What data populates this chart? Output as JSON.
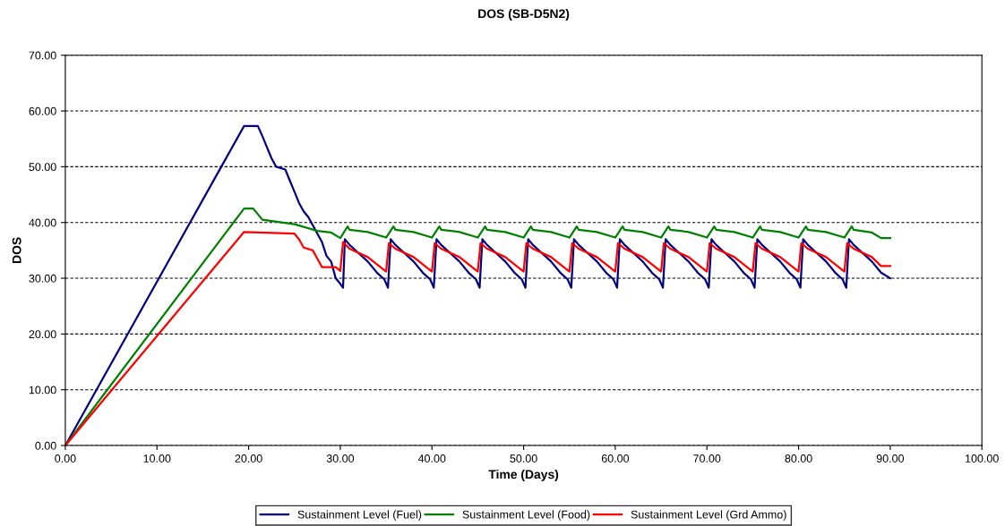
{
  "chart_data": {
    "type": "line",
    "title": "DOS (SB-D5N2)",
    "xlabel": "Time (Days)",
    "ylabel": "DOS",
    "xlim": [
      0,
      100
    ],
    "ylim": [
      0,
      70
    ],
    "xticks": [
      {
        "value": 0,
        "label": "0.00"
      },
      {
        "value": 10,
        "label": "10.00"
      },
      {
        "value": 20,
        "label": "20.00"
      },
      {
        "value": 30,
        "label": "30.00"
      },
      {
        "value": 40,
        "label": "40.00"
      },
      {
        "value": 50,
        "label": "50.00"
      },
      {
        "value": 60,
        "label": "60.00"
      },
      {
        "value": 70,
        "label": "70.00"
      },
      {
        "value": 80,
        "label": "80.00"
      },
      {
        "value": 90,
        "label": "90.00"
      },
      {
        "value": 100,
        "label": "100.00"
      }
    ],
    "yticks": [
      {
        "value": 0,
        "label": "0.00"
      },
      {
        "value": 10,
        "label": "10.00"
      },
      {
        "value": 20,
        "label": "20.00"
      },
      {
        "value": 30,
        "label": "30.00"
      },
      {
        "value": 40,
        "label": "40.00"
      },
      {
        "value": 50,
        "label": "50.00"
      },
      {
        "value": 60,
        "label": "60.00"
      },
      {
        "value": 70,
        "label": "70.00"
      }
    ],
    "grid": "y",
    "legend": "bottom",
    "marker": "none",
    "line_style": "solid",
    "series": [
      {
        "name": "Sustainment Level (Fuel)",
        "color": "#000080",
        "x": [
          0,
          19.5,
          21,
          21.5,
          22,
          22.5,
          23,
          24,
          24.5,
          25,
          25.5,
          26,
          26.5,
          27,
          27.5,
          28,
          28.5,
          29,
          29.5,
          30,
          30.3,
          30.5,
          31,
          32,
          33,
          34,
          34.8,
          35.2,
          35.5,
          36,
          37,
          38,
          39,
          39.8,
          40.2,
          40.5,
          41,
          42,
          43,
          44,
          44.8,
          45.2,
          45.5,
          46,
          47,
          48,
          49,
          49.8,
          50.2,
          50.5,
          51,
          52,
          53,
          54,
          54.8,
          55.2,
          55.5,
          56,
          57,
          58,
          59,
          59.8,
          60.2,
          60.5,
          61,
          62,
          63,
          64,
          64.8,
          65.2,
          65.5,
          66,
          67,
          68,
          69,
          69.8,
          70.2,
          70.5,
          71,
          72,
          73,
          74,
          74.8,
          75.2,
          75.5,
          76,
          77,
          78,
          79,
          79.8,
          80.2,
          80.5,
          81,
          82,
          83,
          84,
          84.8,
          85.2,
          85.5,
          86,
          87,
          88,
          89,
          90
        ],
        "values": [
          0,
          57.3,
          57.3,
          55.5,
          53.5,
          51.5,
          50,
          49.5,
          47.5,
          45.5,
          43.5,
          42,
          41,
          39.5,
          38,
          36.5,
          34,
          33,
          30,
          29,
          28.3,
          37,
          36,
          34.5,
          33,
          31,
          29.8,
          28.3,
          37,
          36,
          34.5,
          33,
          31,
          29.8,
          28.3,
          37,
          36,
          34.5,
          33,
          31,
          29.8,
          28.3,
          37,
          36,
          34.5,
          33,
          31,
          29.8,
          28.3,
          37,
          36,
          34.5,
          33,
          31,
          29.8,
          28.3,
          37,
          36,
          34.5,
          33,
          31,
          29.8,
          28.3,
          37,
          36,
          34.5,
          33,
          31,
          29.8,
          28.3,
          37,
          36,
          34.5,
          33,
          31,
          29.8,
          28.3,
          37,
          36,
          34.5,
          33,
          31,
          29.8,
          28.3,
          37,
          36,
          34.5,
          33,
          31,
          29.8,
          28.3,
          37,
          36,
          34.5,
          33,
          31,
          29.8,
          28.3,
          37,
          36,
          34.5,
          33,
          31,
          30
        ]
      },
      {
        "name": "Sustainment Level (Food)",
        "color": "#008000",
        "x": [
          0,
          19.5,
          20.5,
          21,
          21.5,
          25,
          27.5,
          29,
          30,
          30.8,
          31,
          33,
          35,
          35.8,
          36,
          38,
          40,
          40.8,
          41,
          43,
          45,
          45.8,
          46,
          48,
          50,
          50.8,
          51,
          53,
          55,
          55.8,
          56,
          58,
          60,
          60.8,
          61,
          63,
          65,
          65.8,
          66,
          68,
          70,
          70.8,
          71,
          73,
          75,
          75.8,
          76,
          78,
          80,
          80.8,
          81,
          83,
          85,
          85.8,
          86,
          88,
          89,
          90
        ],
        "values": [
          0,
          42.5,
          42.5,
          41.5,
          40.5,
          39.7,
          38.5,
          38.2,
          37.2,
          39.3,
          38.7,
          38.3,
          37.3,
          39.3,
          38.7,
          38.3,
          37.3,
          39.3,
          38.7,
          38.3,
          37.3,
          39.3,
          38.7,
          38.3,
          37.3,
          39.3,
          38.7,
          38.3,
          37.3,
          39.3,
          38.7,
          38.3,
          37.3,
          39.3,
          38.7,
          38.3,
          37.3,
          39.3,
          38.7,
          38.3,
          37.3,
          39.3,
          38.7,
          38.3,
          37.3,
          39.3,
          38.7,
          38.3,
          37.3,
          39.3,
          38.7,
          38.3,
          37.3,
          39.3,
          38.7,
          38.2,
          37.2,
          37.2
        ]
      },
      {
        "name": "Sustainment Level (Grd Ammo)",
        "color": "#ff0000",
        "x": [
          0,
          19.5,
          25,
          25.5,
          26,
          27,
          27.5,
          28,
          29.5,
          30,
          30.3,
          31,
          33,
          35,
          35.3,
          36,
          38,
          40,
          40.3,
          41,
          43,
          45,
          45.3,
          46,
          48,
          50,
          50.3,
          51,
          53,
          55,
          55.3,
          56,
          58,
          60,
          60.3,
          61,
          63,
          65,
          65.3,
          66,
          68,
          70,
          70.3,
          71,
          73,
          75,
          75.3,
          76,
          78,
          80,
          80.3,
          81,
          83,
          85,
          85.3,
          86,
          88,
          89,
          90
        ],
        "values": [
          0,
          38.3,
          38,
          37,
          35.5,
          35,
          33.5,
          32,
          32,
          31.3,
          36.5,
          35.3,
          33.8,
          31.2,
          36.3,
          35.3,
          33.8,
          31.2,
          36.3,
          35.3,
          33.8,
          31.2,
          36.3,
          35.3,
          33.8,
          31.2,
          36.3,
          35.3,
          33.8,
          31.2,
          36.3,
          35.3,
          33.8,
          31.2,
          36.3,
          35.3,
          33.8,
          31.2,
          36.3,
          35.3,
          33.8,
          31.2,
          36.3,
          35.3,
          33.8,
          31.2,
          36.3,
          35.3,
          33.8,
          31.2,
          36.3,
          35.3,
          33.8,
          31.2,
          36.3,
          35.3,
          33.8,
          32.2,
          32.2
        ]
      }
    ]
  }
}
